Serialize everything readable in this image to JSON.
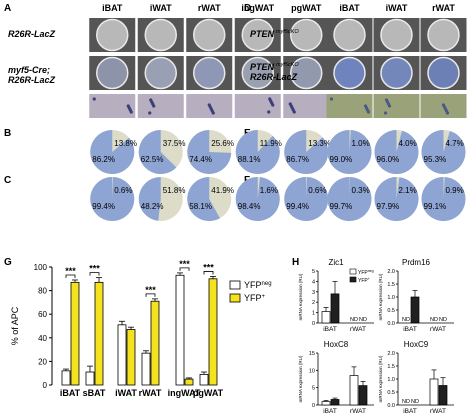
{
  "panels": {
    "A": {
      "letter": "A",
      "columns": [
        "iBAT",
        "iWAT",
        "rWAT",
        "ingWAT",
        "pgWAT"
      ],
      "row_labels": [
        {
          "lines": [
            "R26R-LacZ"
          ]
        },
        {
          "lines": [
            "myf5-Cre;",
            "R26R-LacZ"
          ]
        }
      ]
    },
    "D": {
      "letter": "D",
      "columns": [
        "iBAT",
        "iWAT",
        "rWAT"
      ],
      "row_labels": [
        {
          "lines": [
            "PTEN",
            "myf5cKO"
          ]
        },
        {
          "lines": [
            "PTEN",
            "myf5cKO",
            "R26R-LacZ"
          ]
        }
      ]
    }
  },
  "colors": {
    "blue": "#8ea4d2",
    "beige": "#dcdcc8",
    "yfp_pos": "#f5e11e",
    "yfp_neg": "#ffffff",
    "dark_bar": "#202020",
    "well_grey": "#b8b8b8",
    "well_blue": "#6a7fb5"
  },
  "chart_data": [
    {
      "type": "pie",
      "panel": "B",
      "slices": [
        {
          "blue": 86.2,
          "beige": 13.8
        },
        {
          "blue": 62.5,
          "beige": 37.5
        },
        {
          "blue": 74.4,
          "beige": 25.6
        },
        {
          "blue": 88.1,
          "beige": 11.9
        },
        {
          "blue": 86.7,
          "beige": 13.3
        }
      ]
    },
    {
      "type": "pie",
      "panel": "C",
      "slices": [
        {
          "blue": 99.4,
          "beige": 0.6
        },
        {
          "blue": 48.2,
          "beige": 51.8
        },
        {
          "blue": 58.1,
          "beige": 41.9
        },
        {
          "blue": 98.4,
          "beige": 1.6
        },
        {
          "blue": 99.4,
          "beige": 0.6
        }
      ]
    },
    {
      "type": "pie",
      "panel": "E",
      "slices": [
        {
          "blue": 99.0,
          "beige": 1.0
        },
        {
          "blue": 96.0,
          "beige": 4.0
        },
        {
          "blue": 95.3,
          "beige": 4.7
        }
      ]
    },
    {
      "type": "pie",
      "panel": "F",
      "slices": [
        {
          "blue": 99.7,
          "beige": 0.3
        },
        {
          "blue": 97.9,
          "beige": 2.1
        },
        {
          "blue": 99.1,
          "beige": 0.9
        }
      ]
    },
    {
      "type": "bar",
      "panel": "G",
      "ylabel": "% of APC",
      "ylim": [
        0,
        100
      ],
      "yticks": [
        0,
        20,
        40,
        60,
        80,
        100
      ],
      "categories": [
        "iBAT",
        "sBAT",
        "iWAT",
        "rWAT",
        "ingWAT",
        "pgWAT"
      ],
      "series": [
        {
          "name": "YFP",
          "sup": "neg",
          "values": [
            12,
            11,
            51,
            27,
            93,
            9
          ],
          "errors": [
            1.5,
            5,
            3,
            2,
            2,
            2
          ]
        },
        {
          "name": "YFP",
          "sup": "+",
          "values": [
            87,
            87,
            47,
            71,
            5,
            90
          ],
          "errors": [
            2,
            4,
            2,
            2,
            1,
            2
          ]
        }
      ],
      "significance": [
        {
          "pair": 0,
          "label": "***"
        },
        {
          "pair": 1,
          "label": "***"
        },
        {
          "pair": 3,
          "label": "***"
        },
        {
          "pair": 4,
          "label": "***"
        },
        {
          "pair": 5,
          "label": "***"
        }
      ]
    },
    {
      "type": "bar",
      "panel": "H",
      "legend": [
        {
          "name": "YFP",
          "sup": "neg"
        },
        {
          "name": "YFP",
          "sup": "+"
        }
      ],
      "subplots": [
        {
          "title": "Zic1",
          "ylabel": "mRNA expression (RU)",
          "ylim": [
            0,
            5
          ],
          "yticks": [
            0,
            1,
            2,
            3,
            4,
            5
          ],
          "groups": [
            "iBAT",
            "rWAT"
          ],
          "values": [
            [
              1.1,
              2.8
            ],
            [
              null,
              null
            ]
          ],
          "errors": [
            [
              0.4,
              1.2
            ],
            [
              null,
              null
            ]
          ],
          "nd": [
            [
              false,
              false
            ],
            [
              true,
              true
            ]
          ]
        },
        {
          "title": "Prdm16",
          "ylabel": "mRNA expression (RU)",
          "ylim": [
            0,
            2.0
          ],
          "yticks": [
            0,
            0.5,
            1.0,
            1.5,
            2.0
          ],
          "groups": [
            "iBAT",
            "rWAT"
          ],
          "values": [
            [
              null,
              1.0
            ],
            [
              null,
              null
            ]
          ],
          "errors": [
            [
              null,
              0.25
            ],
            [
              null,
              null
            ]
          ],
          "nd": [
            [
              true,
              false
            ],
            [
              true,
              true
            ]
          ]
        },
        {
          "title": "HoxC8",
          "ylabel": "mRNA expression (RU)",
          "ylim": [
            0,
            15
          ],
          "yticks": [
            0,
            5,
            10,
            15
          ],
          "groups": [
            "iBAT",
            "rWAT"
          ],
          "values": [
            [
              1.0,
              1.6
            ],
            [
              8.5,
              5.6
            ]
          ],
          "errors": [
            [
              0.3,
              0.4
            ],
            [
              2.5,
              1.2
            ]
          ],
          "nd": [
            [
              false,
              false
            ],
            [
              false,
              false
            ]
          ]
        },
        {
          "title": "HoxC9",
          "ylabel": "mRNA expression (RU)",
          "ylim": [
            0,
            2.0
          ],
          "yticks": [
            0,
            0.5,
            1.0,
            1.5,
            2.0
          ],
          "groups": [
            "iBAT",
            "rWAT"
          ],
          "values": [
            [
              null,
              null
            ],
            [
              1.0,
              0.75
            ]
          ],
          "errors": [
            [
              null,
              null
            ],
            [
              0.35,
              0.3
            ]
          ],
          "nd": [
            [
              true,
              true
            ],
            [
              false,
              false
            ]
          ]
        }
      ]
    }
  ]
}
